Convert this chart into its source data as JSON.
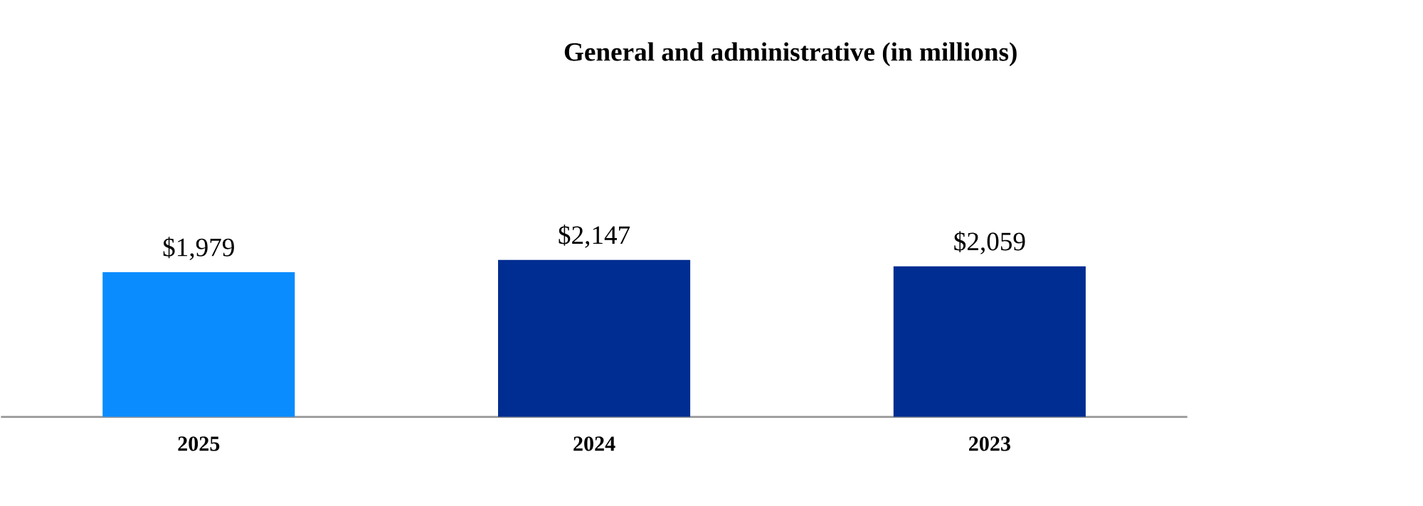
{
  "chart_data": {
    "type": "bar",
    "title": "General and administrative (in millions)",
    "categories": [
      "2025",
      "2024",
      "2023"
    ],
    "values": [
      1979,
      2147,
      2059
    ],
    "colors": [
      "#0a8cff",
      "#002d91",
      "#002d91"
    ],
    "value_labels": [
      "$1,979",
      "$2,147",
      "$2,059"
    ]
  }
}
